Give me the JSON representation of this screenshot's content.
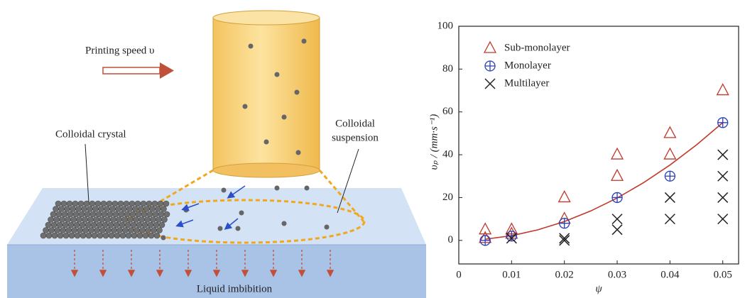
{
  "diagram": {
    "speed_label": "Printing speed υ",
    "suspension_label": [
      "Colloidal",
      "suspension"
    ],
    "crystal_label": "Colloidal crystal",
    "imbibition_label": "Liquid imbibition"
  },
  "chart_data": {
    "type": "scatter",
    "x_label": "ψ",
    "y_label": "υₚ / (mm·s⁻¹)",
    "xlim": [
      0,
      0.053
    ],
    "xticks": [
      0,
      0.01,
      0.02,
      0.03,
      0.04,
      0.05
    ],
    "ylim": [
      -11,
      100
    ],
    "yticks": [
      0,
      20,
      40,
      60,
      80,
      100
    ],
    "series": [
      {
        "name": "Sub-monolayer",
        "color": "#c0392b",
        "marker": "triangle",
        "x": [
          0.005,
          0.005,
          0.01,
          0.01,
          0.02,
          0.02,
          0.03,
          0.03,
          0.04,
          0.04,
          0.05
        ],
        "values": [
          5,
          1,
          5,
          3,
          20,
          10,
          40,
          30,
          50,
          40,
          70
        ]
      },
      {
        "name": "Monolayer",
        "color": "#2b3fb5",
        "marker": "circle-plus",
        "x": [
          0.005,
          0.01,
          0.02,
          0.03,
          0.04,
          0.05
        ],
        "values": [
          0,
          2,
          8,
          20,
          30,
          55
        ]
      },
      {
        "name": "Multilayer",
        "color": "#222222",
        "marker": "cross",
        "x": [
          0.01,
          0.02,
          0.02,
          0.03,
          0.03,
          0.04,
          0.04,
          0.05,
          0.05,
          0.05,
          0.05
        ],
        "values": [
          1,
          1,
          0,
          10,
          5,
          20,
          10,
          40,
          30,
          20,
          10
        ]
      }
    ],
    "fit": {
      "color": "#c0392b",
      "x": [
        0.005,
        0.01,
        0.015,
        0.02,
        0.025,
        0.03,
        0.035,
        0.04,
        0.045,
        0.05
      ],
      "values": [
        0.55,
        2.2,
        4.95,
        8.8,
        13.75,
        19.8,
        26.95,
        35.2,
        44.55,
        55
      ]
    }
  }
}
